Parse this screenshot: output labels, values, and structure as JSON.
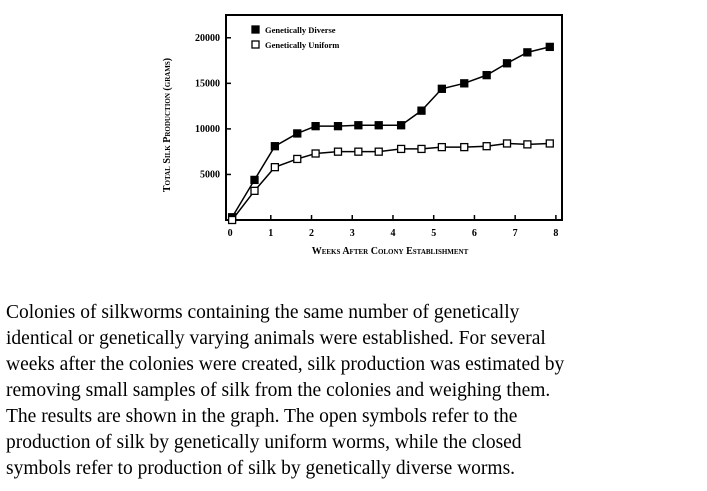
{
  "chart_data": {
    "type": "line",
    "xlabel": "Weeks After Colony Establishment",
    "ylabel": "Total Silk Production (grams)",
    "series": [
      {
        "name": "Genetically Diverse",
        "color": "#000000",
        "marker": "filled-square",
        "x": [
          0.05,
          0.6,
          1.1,
          1.65,
          2.1,
          2.65,
          3.15,
          3.65,
          4.2,
          4.7,
          5.2,
          5.75,
          6.3,
          6.8,
          7.3,
          7.85
        ],
        "values": [
          300,
          4400,
          8100,
          9500,
          10300,
          10300,
          10400,
          10400,
          10400,
          12000,
          14400,
          15000,
          15900,
          17200,
          18400,
          19000
        ]
      },
      {
        "name": "Genetically Uniform",
        "color": "#000000",
        "marker": "open-square",
        "x": [
          0.05,
          0.6,
          1.1,
          1.65,
          2.1,
          2.65,
          3.15,
          3.65,
          4.2,
          4.7,
          5.2,
          5.75,
          6.3,
          6.8,
          7.3,
          7.85
        ],
        "values": [
          0,
          3200,
          5800,
          6700,
          7300,
          7500,
          7500,
          7500,
          7800,
          7800,
          8000,
          8000,
          8100,
          8400,
          8300,
          8400
        ]
      }
    ],
    "xlim": [
      -0.1,
      8.15
    ],
    "xticks": [
      0,
      1,
      2,
      3,
      4,
      5,
      6,
      7,
      8
    ],
    "ylim": [
      0,
      22500
    ],
    "yticks": [
      5000,
      10000,
      15000,
      20000
    ],
    "legend": "upper left"
  },
  "paragraph_lines": [
    "Colonies of silkworms containing the same number of genetically",
    "identical or genetically varying animals were established. For several",
    "weeks after the colonies were created, silk production was estimated by",
    "removing small samples of silk from the colonies and weighing them.",
    "The results are shown in the graph. The open symbols refer to the",
    "production of silk by genetically uniform worms, while the closed",
    "symbols refer to production of silk by genetically diverse worms."
  ]
}
